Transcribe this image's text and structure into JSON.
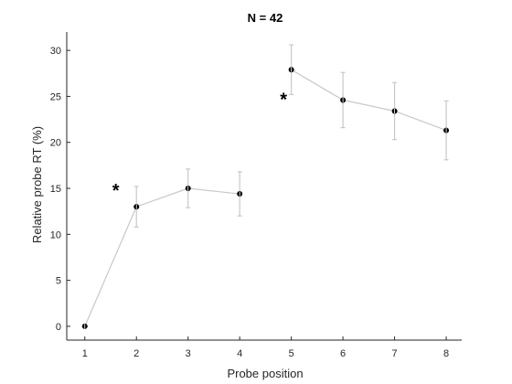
{
  "chart_data": {
    "type": "line",
    "title": "N = 42",
    "xlabel": "Probe position",
    "ylabel": "Relative probe RT (%)",
    "xlim": [
      0.65,
      8.3
    ],
    "ylim": [
      -1.5,
      32
    ],
    "xticks": [
      1,
      2,
      3,
      4,
      5,
      6,
      7,
      8
    ],
    "yticks": [
      0,
      5,
      10,
      15,
      20,
      25,
      30
    ],
    "grid": false,
    "box": false,
    "segments": [
      {
        "points": [
          {
            "x": 1,
            "y": 0.0,
            "err": 0.0
          },
          {
            "x": 2,
            "y": 13.0,
            "err": 2.2
          },
          {
            "x": 3,
            "y": 15.0,
            "err": 2.1
          },
          {
            "x": 4,
            "y": 14.4,
            "err": 2.4
          }
        ]
      },
      {
        "points": [
          {
            "x": 5,
            "y": 27.9,
            "err": 2.7
          },
          {
            "x": 6,
            "y": 24.6,
            "err": 3.0
          },
          {
            "x": 7,
            "y": 23.4,
            "err": 3.1
          },
          {
            "x": 8,
            "y": 21.3,
            "err": 3.2
          }
        ]
      }
    ],
    "annotations": [
      {
        "text": "*",
        "x": 1.6,
        "y": 15.0
      },
      {
        "text": "*",
        "x": 4.85,
        "y": 24.9
      }
    ],
    "colors": {
      "line": "#c8c8c8",
      "errorbar": "#c8c8c8",
      "marker": "#000000",
      "axis": "#262626"
    }
  }
}
